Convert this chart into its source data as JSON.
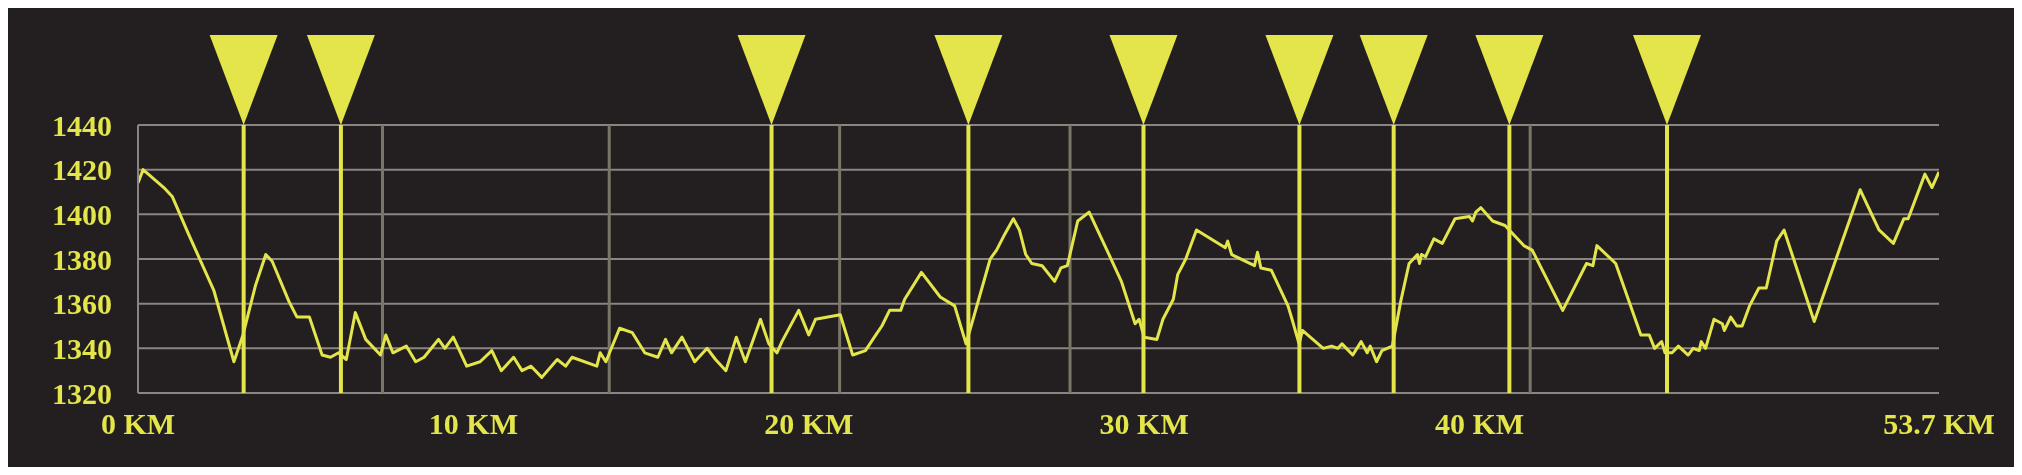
{
  "chart_data": {
    "type": "line",
    "color": "#e3e54a",
    "x": [
      0,
      0.15,
      0.77,
      1.02,
      1.51,
      2.26,
      2.86,
      3.13,
      3.5,
      3.81,
      4.0,
      4.5,
      4.74,
      5.11,
      5.49,
      5.74,
      5.98,
      6.21,
      6.48,
      6.79,
      7.23,
      7.39,
      7.6,
      8.0,
      8.28,
      8.53,
      8.96,
      9.15,
      9.4,
      9.8,
      10.2,
      10.55,
      10.83,
      11.2,
      11.45,
      11.72,
      12.04,
      12.5,
      12.75,
      12.94,
      13.68,
      13.78,
      13.95,
      14.36,
      14.74,
      15.11,
      15.5,
      15.73,
      15.91,
      16.22,
      16.6,
      16.97,
      17.22,
      17.53,
      17.84,
      18.11,
      18.56,
      18.81,
      19.05,
      19.2,
      19.7,
      20.0,
      20.2,
      20.94,
      21.31,
      21.69,
      22.0,
      22.18,
      22.41,
      22.74,
      22.86,
      23.36,
      23.92,
      24.35,
      24.69,
      25.41,
      25.6,
      25.84,
      26.1,
      26.28,
      26.47,
      26.65,
      26.96,
      27.33,
      27.52,
      27.71,
      28.02,
      28.36,
      28.89,
      29.32,
      29.73,
      29.85,
      30.0,
      30.38,
      30.56,
      30.87,
      31.0,
      31.24,
      31.56,
      32.42,
      32.49,
      32.61,
      33.29,
      33.38,
      33.48,
      33.79,
      34.29,
      34.41,
      34.62,
      34.72,
      35.34,
      35.59,
      35.78,
      35.9,
      36.22,
      36.47,
      36.65,
      36.74,
      36.93,
      37.09,
      37.4,
      37.65,
      37.9,
      38.15,
      38.21,
      38.27,
      38.39,
      38.64,
      38.89,
      39.27,
      39.7,
      39.79,
      39.89,
      40.04,
      40.39,
      40.76,
      41.32,
      41.57,
      42.48,
      43.19,
      43.38,
      43.5,
      44.06,
      44.81,
      45.06,
      45.22,
      45.43,
      45.53,
      45.74,
      45.93,
      46.22,
      46.37,
      46.55,
      46.61,
      46.74,
      46.99,
      47.24,
      47.3,
      47.49,
      47.67,
      47.83,
      48.05,
      48.33,
      48.55,
      48.86,
      49.08,
      49.98,
      51.35,
      51.91,
      52.34,
      52.65,
      52.78,
      53.28,
      53.49,
      53.7
    ],
    "values": [
      1414,
      1420,
      1412,
      1408,
      1391,
      1366,
      1334,
      1346,
      1368,
      1382,
      1379,
      1361,
      1354,
      1354,
      1337,
      1336,
      1338,
      1335,
      1356,
      1344,
      1337,
      1346,
      1338,
      1341,
      1334,
      1336,
      1344,
      1340,
      1345,
      1332,
      1334,
      1339,
      1330,
      1336,
      1330,
      1332,
      1327,
      1335,
      1332,
      1336,
      1332,
      1338,
      1334,
      1349,
      1347,
      1338,
      1336,
      1344,
      1338,
      1345,
      1334,
      1340,
      1335,
      1330,
      1345,
      1334,
      1353,
      1342,
      1338,
      1343,
      1357,
      1346,
      1353,
      1355,
      1337,
      1339,
      1346,
      1350,
      1357,
      1357,
      1362,
      1374,
      1363,
      1359,
      1342,
      1380,
      1384,
      1391,
      1398,
      1393,
      1382,
      1378,
      1377,
      1370,
      1376,
      1377,
      1397,
      1401,
      1384,
      1370,
      1351,
      1353,
      1345,
      1344,
      1353,
      1362,
      1373,
      1380,
      1393,
      1385,
      1388,
      1382,
      1377,
      1383,
      1376,
      1375,
      1359,
      1353,
      1342,
      1348,
      1340,
      1341,
      1340,
      1342,
      1337,
      1343,
      1338,
      1341,
      1334,
      1339,
      1341,
      1361,
      1378,
      1382,
      1378,
      1382,
      1381,
      1389,
      1387,
      1398,
      1399,
      1397,
      1401,
      1403,
      1397,
      1395,
      1386,
      1384,
      1357,
      1378,
      1377,
      1386,
      1378,
      1346,
      1346,
      1340,
      1343,
      1338,
      1338,
      1341,
      1337,
      1340,
      1339,
      1343,
      1340,
      1353,
      1351,
      1348,
      1354,
      1350,
      1350,
      1359,
      1367,
      1367,
      1388,
      1393,
      1352,
      1411,
      1393,
      1387,
      1398,
      1398,
      1418,
      1412,
      1419
    ],
    "xlim": [
      0,
      53.7
    ],
    "xticks": [
      {
        "value": 0,
        "label": "0 KM"
      },
      {
        "value": 10,
        "label": "10 KM"
      },
      {
        "value": 20,
        "label": "20 KM"
      },
      {
        "value": 30,
        "label": "30 KM"
      },
      {
        "value": 40,
        "label": "40 KM"
      },
      {
        "value": 53.7,
        "label": "53.7 KM"
      }
    ],
    "ylim": [
      1320,
      1440
    ],
    "yticks": [
      1320,
      1340,
      1360,
      1380,
      1400,
      1420,
      1440
    ],
    "grid": "y",
    "marker": "none",
    "line_style": "solid",
    "ref_lines": [
      {
        "axis": "x",
        "value": 7.29,
        "label": null,
        "color": "#7a7566"
      },
      {
        "axis": "x",
        "value": 14.05,
        "label": null,
        "color": "#7a7566"
      },
      {
        "axis": "x",
        "value": 20.92,
        "label": null,
        "color": "#7a7566"
      },
      {
        "axis": "x",
        "value": 27.79,
        "label": null,
        "color": "#7a7566"
      },
      {
        "axis": "x",
        "value": 41.51,
        "label": null,
        "color": "#7a7566"
      },
      {
        "axis": "x",
        "value": 3.15,
        "label": null,
        "color": "#e3e54a"
      },
      {
        "axis": "x",
        "value": 6.05,
        "label": null,
        "color": "#e3e54a"
      },
      {
        "axis": "x",
        "value": 18.89,
        "label": null,
        "color": "#e3e54a"
      },
      {
        "axis": "x",
        "value": 24.76,
        "label": null,
        "color": "#e3e54a"
      },
      {
        "axis": "x",
        "value": 29.98,
        "label": null,
        "color": "#e3e54a"
      },
      {
        "axis": "x",
        "value": 34.63,
        "label": null,
        "color": "#e3e54a"
      },
      {
        "axis": "x",
        "value": 37.44,
        "label": null,
        "color": "#e3e54a"
      },
      {
        "axis": "x",
        "value": 40.89,
        "label": null,
        "color": "#e3e54a"
      },
      {
        "axis": "x",
        "value": 45.59,
        "label": null,
        "color": "#e3e54a"
      }
    ]
  }
}
